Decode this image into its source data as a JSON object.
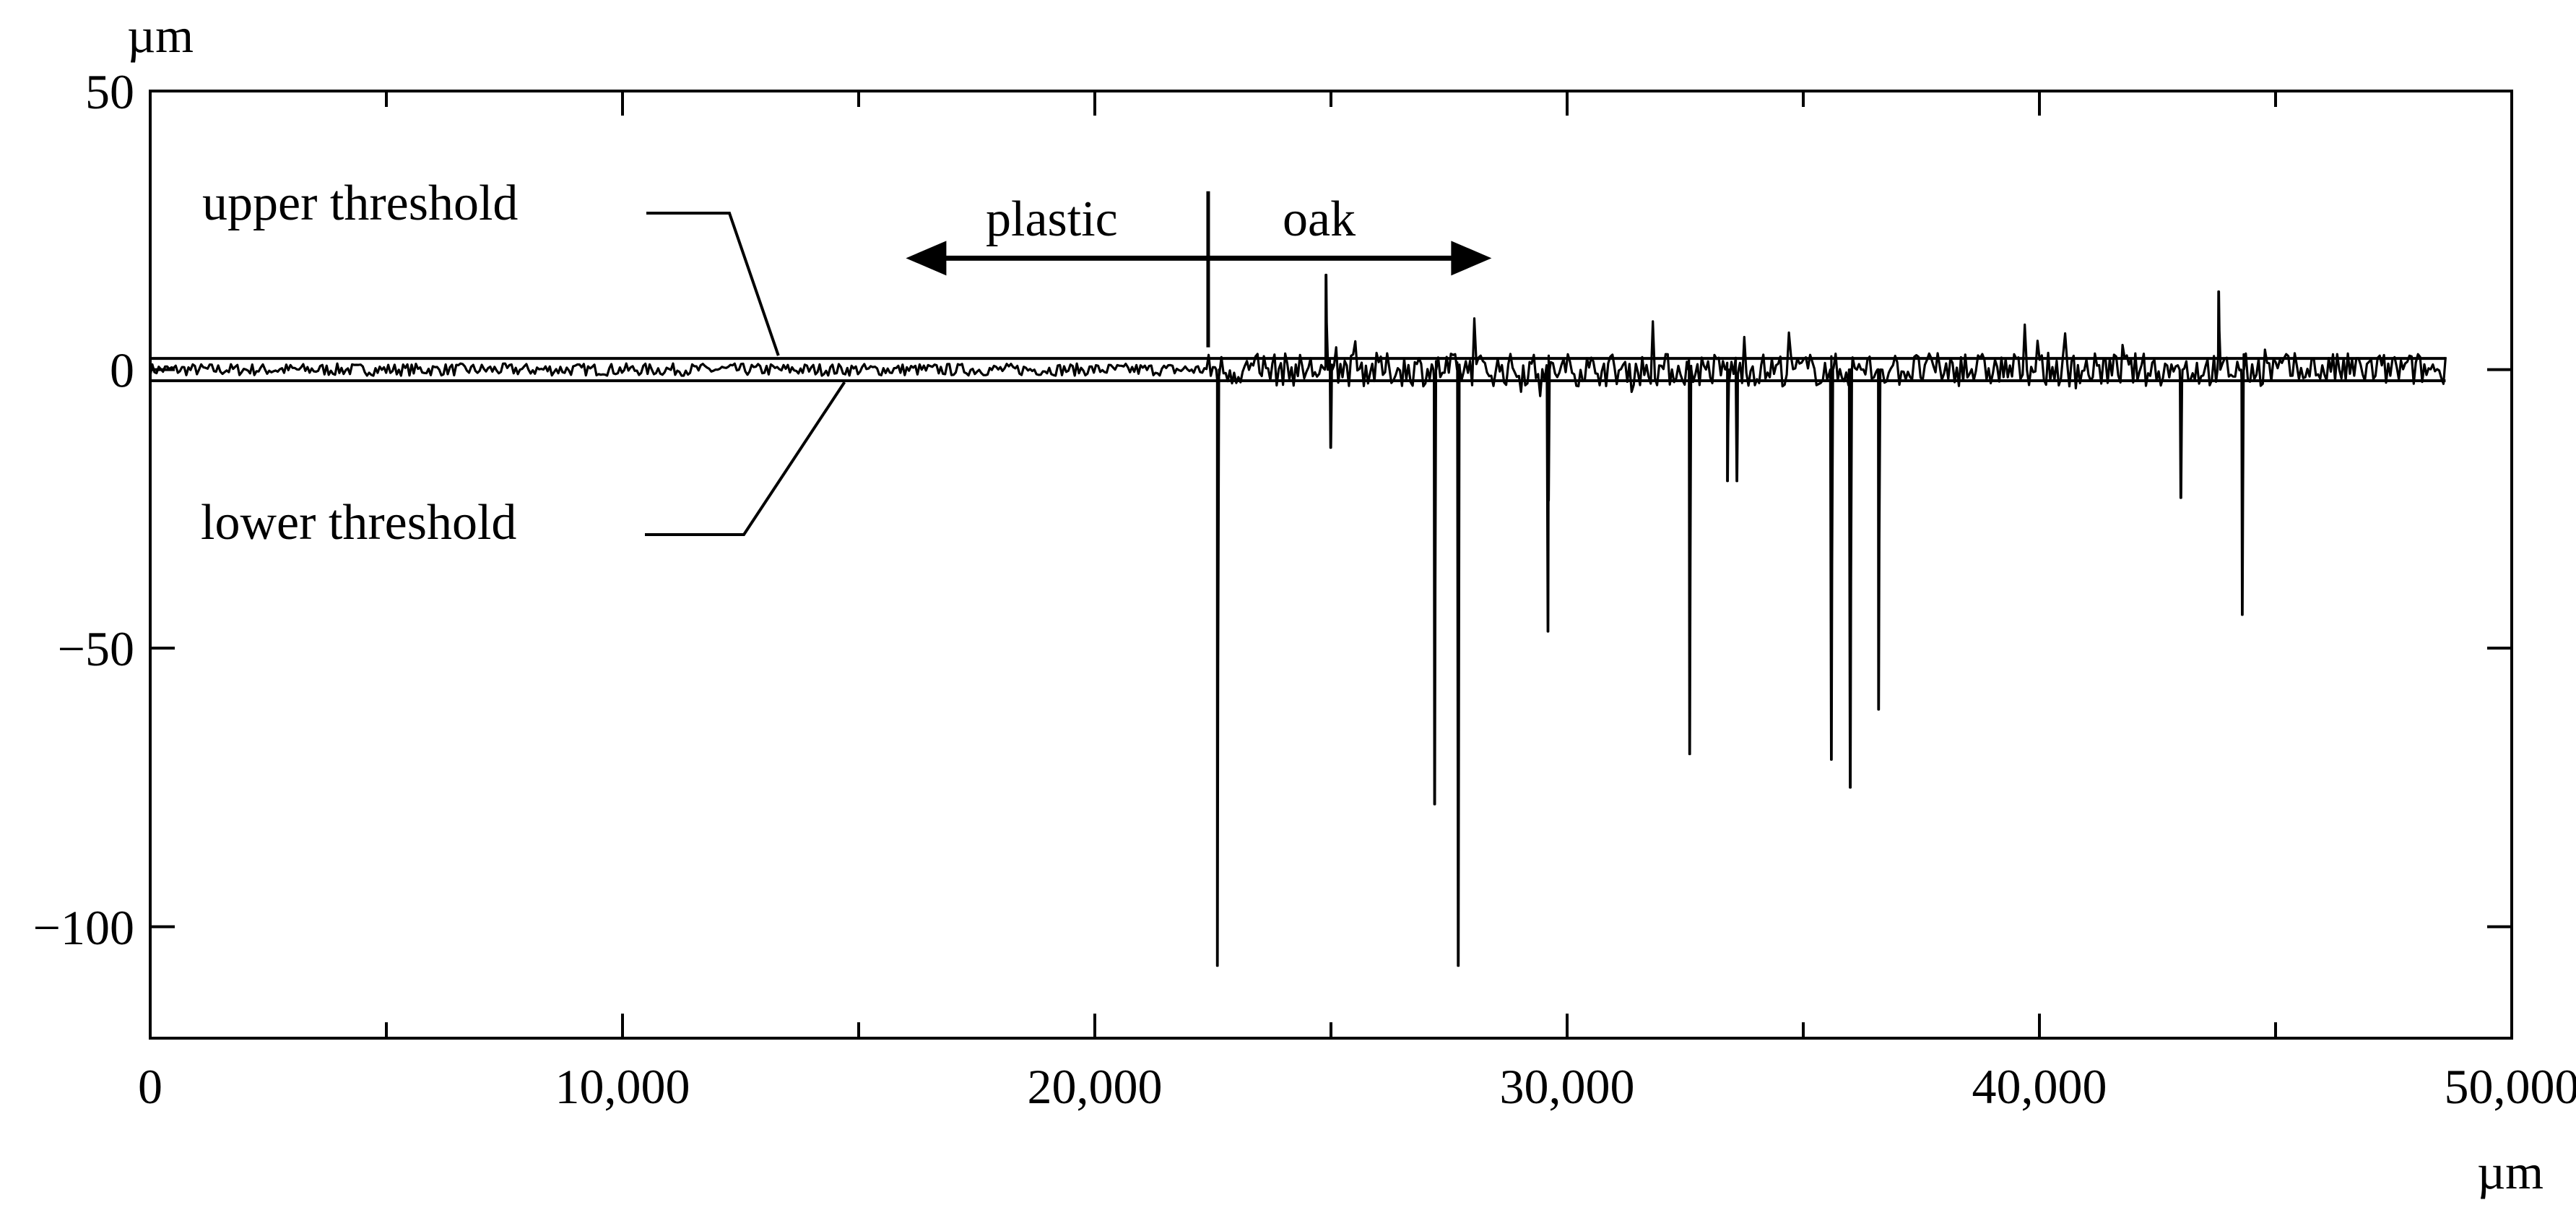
{
  "chart_data": {
    "type": "line",
    "title": "",
    "xlabel": "µm",
    "ylabel": "µm",
    "xlim": [
      0,
      50000
    ],
    "ylim": [
      -120,
      50
    ],
    "grid": false,
    "x_ticks": [
      {
        "value": 0,
        "label": "0"
      },
      {
        "value": 10000,
        "label": "10,000"
      },
      {
        "value": 20000,
        "label": "20,000"
      },
      {
        "value": 30000,
        "label": "30,000"
      },
      {
        "value": 40000,
        "label": "40,000"
      },
      {
        "value": 50000,
        "label": "50,000"
      }
    ],
    "y_ticks": [
      {
        "value": 50,
        "label": "50"
      },
      {
        "value": 0,
        "label": "0"
      },
      {
        "value": -50,
        "label": "−50"
      },
      {
        "value": -100,
        "label": "−100"
      }
    ],
    "thresholds": [
      {
        "name": "upper threshold",
        "value": 2
      },
      {
        "name": "lower threshold",
        "value": -2
      }
    ],
    "regions": [
      {
        "label": "plastic",
        "from": 16000,
        "to": 22400
      },
      {
        "label": "oak",
        "from": 22400,
        "to": 28400
      }
    ],
    "region_boundary": 22400,
    "region_boundary_y": [
      4,
      32
    ],
    "region_arrow_y": 20,
    "profile_end_x": 48600,
    "spikes": [
      {
        "x": 22600,
        "y": -107
      },
      {
        "x": 24900,
        "y": 17
      },
      {
        "x": 25000,
        "y": -14
      },
      {
        "x": 27200,
        "y": -78
      },
      {
        "x": 27700,
        "y": -107
      },
      {
        "x": 29600,
        "y": -47
      },
      {
        "x": 32600,
        "y": -69
      },
      {
        "x": 33400,
        "y": -20
      },
      {
        "x": 33600,
        "y": -20
      },
      {
        "x": 35600,
        "y": -70
      },
      {
        "x": 36000,
        "y": -75
      },
      {
        "x": 36600,
        "y": -61
      },
      {
        "x": 43000,
        "y": -23
      },
      {
        "x": 43800,
        "y": 14
      },
      {
        "x": 44300,
        "y": -44
      }
    ],
    "labels": {
      "upper": "upper threshold",
      "lower": "lower threshold",
      "plastic": "plastic",
      "oak": "oak"
    },
    "line_color": "#000000"
  }
}
